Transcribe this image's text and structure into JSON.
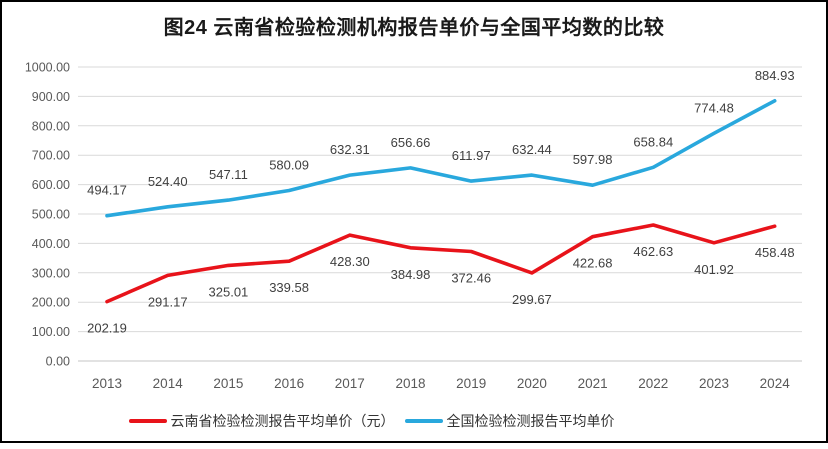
{
  "title": "图24 云南省检验检测机构报告单价与全国平均数的比较",
  "chart_data": {
    "type": "line",
    "title": "图24 云南省检验检测机构报告单价与全国平均数的比较",
    "categories": [
      "2013",
      "2014",
      "2015",
      "2016",
      "2017",
      "2018",
      "2019",
      "2020",
      "2021",
      "2022",
      "2023",
      "2024"
    ],
    "series": [
      {
        "name": "云南省检验检测报告平均单价（元）",
        "color": "#e8131a",
        "label_position": "below",
        "values": [
          202.19,
          291.17,
          325.01,
          339.58,
          428.3,
          384.98,
          372.46,
          299.67,
          422.68,
          462.63,
          401.92,
          458.48
        ]
      },
      {
        "name": "全国检验检测报告平均单价",
        "color": "#29a8dd",
        "label_position": "above",
        "values": [
          494.17,
          524.4,
          547.11,
          580.09,
          632.31,
          656.66,
          611.97,
          632.44,
          597.98,
          658.84,
          774.48,
          884.93
        ]
      }
    ],
    "ylim": [
      0,
      1000
    ],
    "ytick_step": 100,
    "ytick_labels": [
      "0.00",
      "100.00",
      "200.00",
      "300.00",
      "400.00",
      "500.00",
      "600.00",
      "700.00",
      "800.00",
      "900.00",
      "1000.00"
    ],
    "grid": true,
    "legend_position": "bottom",
    "grid_color": "#d9d9d9",
    "baseline_color": "#c6c6c6",
    "axis_label_color": "#595959",
    "data_label_color": "#404040",
    "frame_color": "#000000"
  }
}
